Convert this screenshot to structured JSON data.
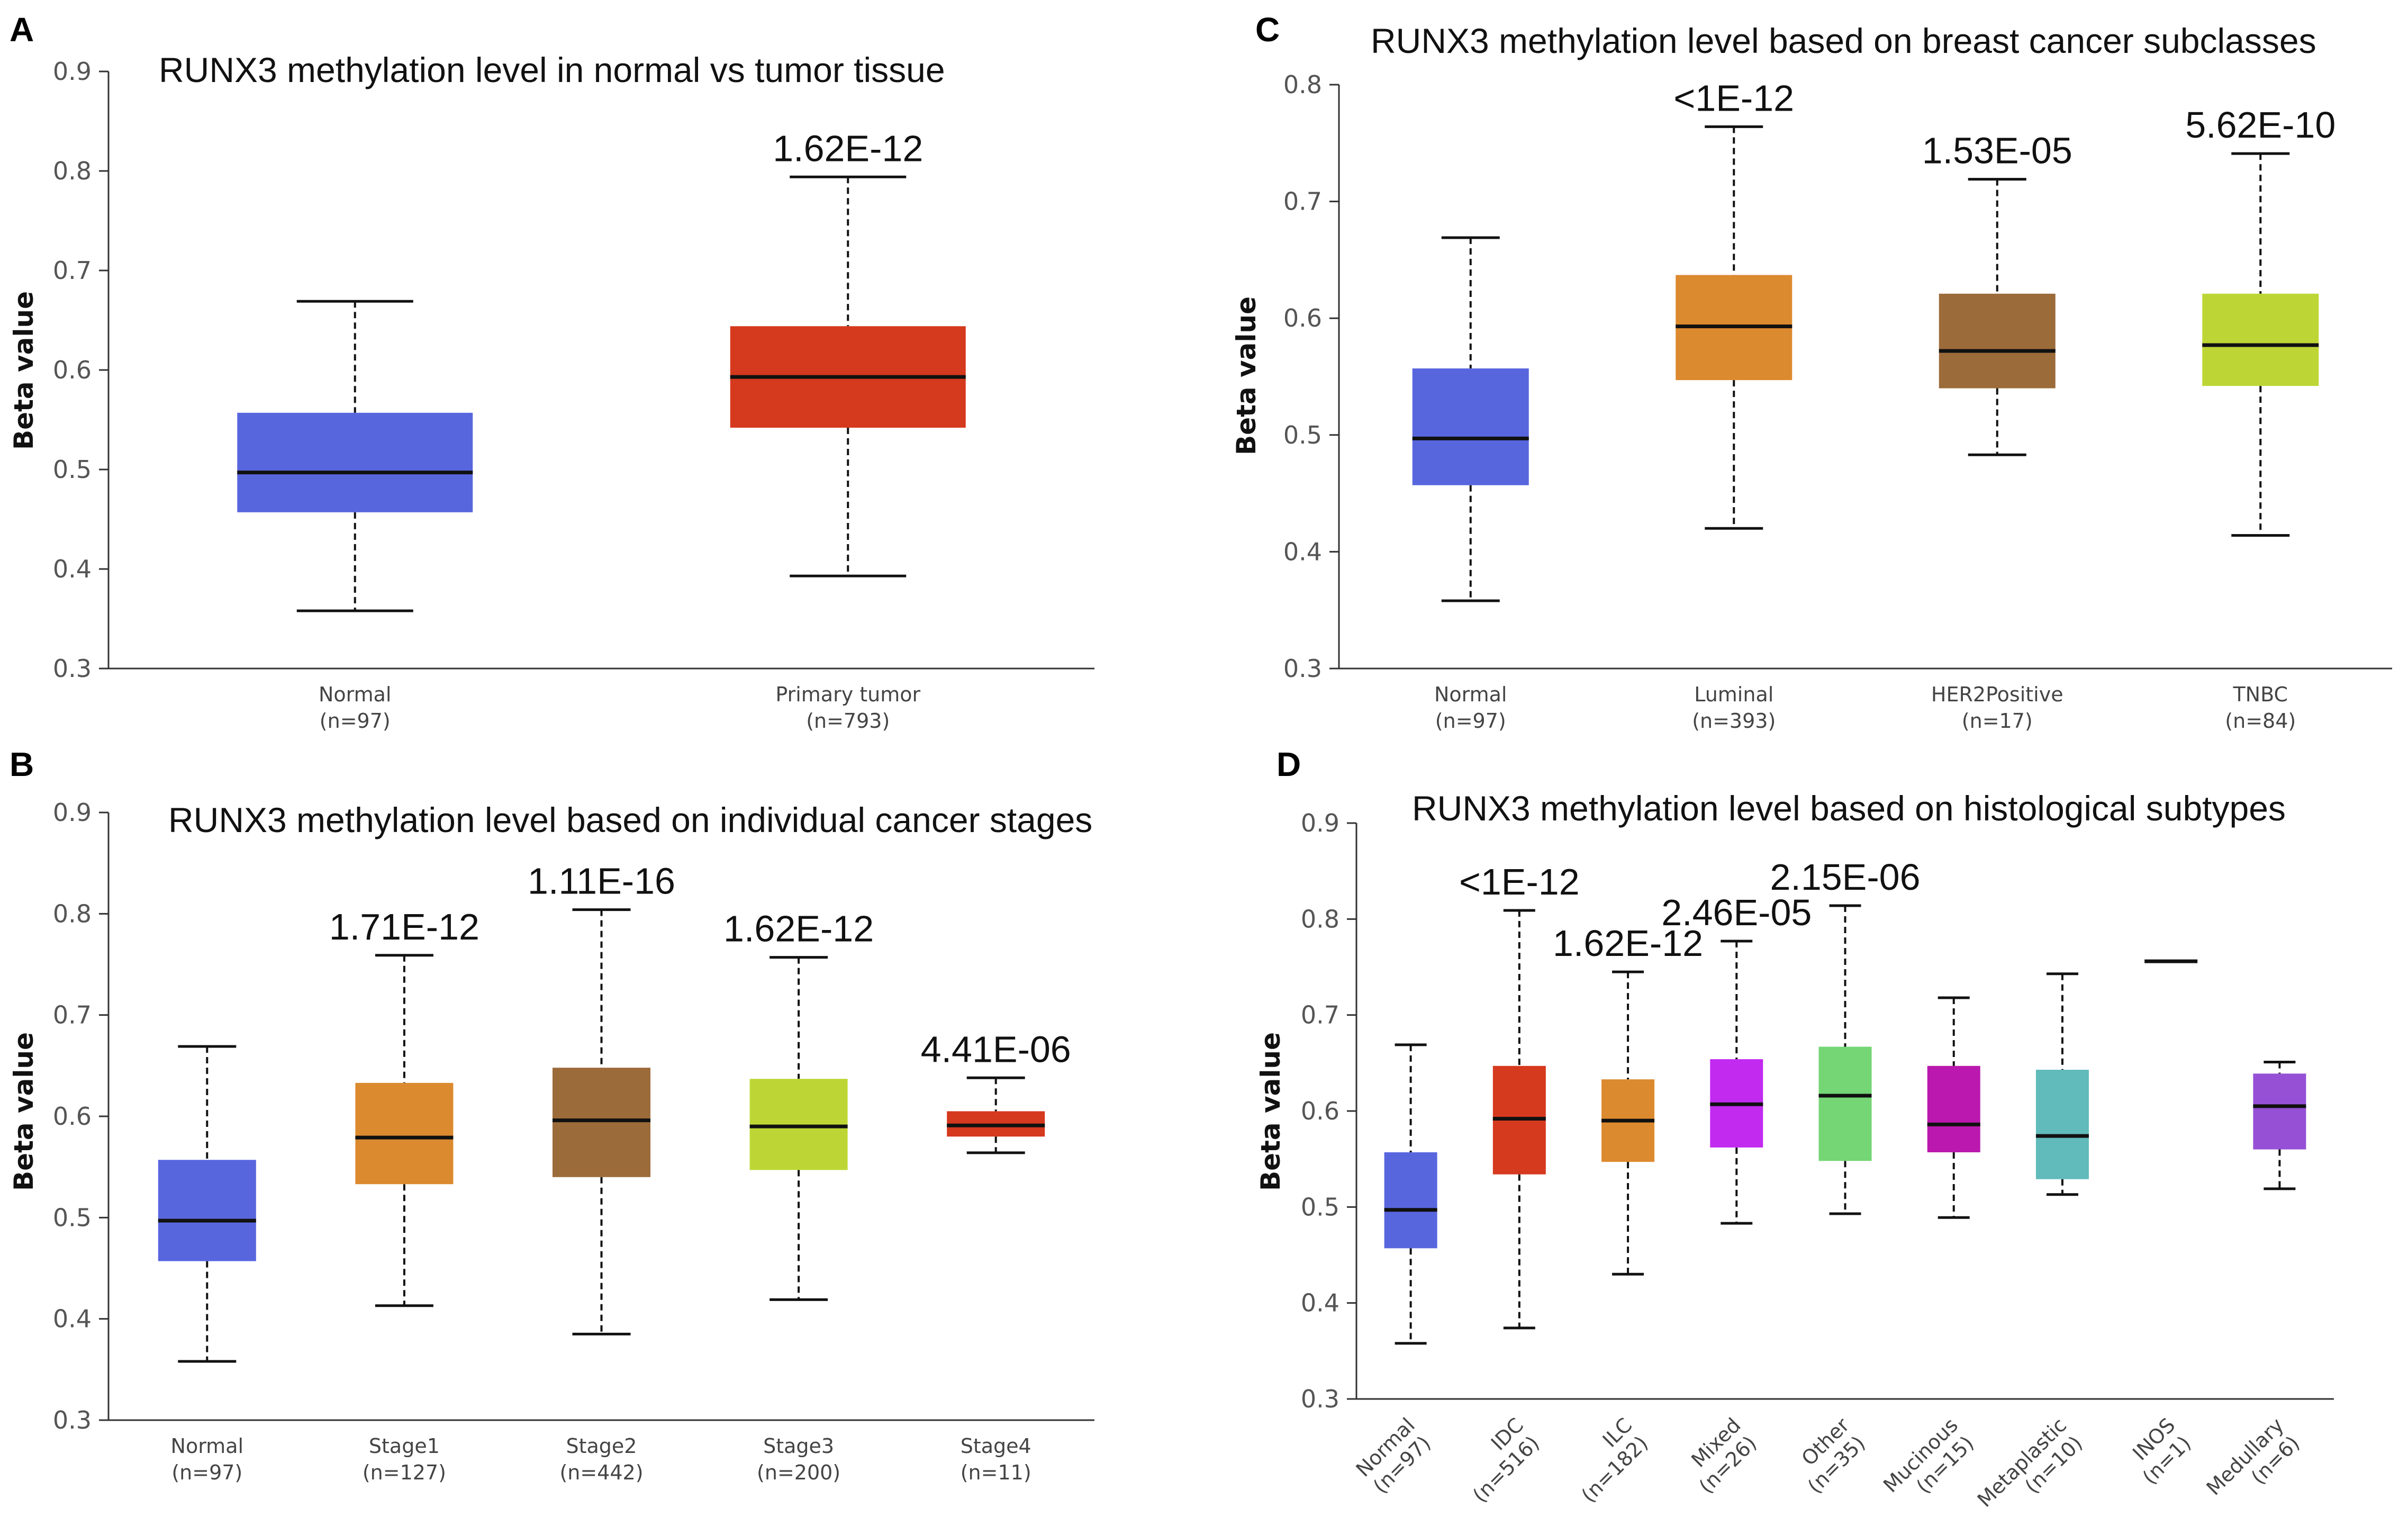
{
  "chart_data": [
    {
      "panel": "A",
      "type": "boxplot",
      "title": "RUNX3 methylation level in normal vs tumor tissue",
      "ylabel": "Beta value",
      "ylim": [
        0.3,
        0.9
      ],
      "yticks": [
        "0.3",
        "0.4",
        "0.5",
        "0.6",
        "0.7",
        "0.8",
        "0.9"
      ],
      "ytick_values": [
        0.3,
        0.4,
        0.5,
        0.6,
        0.7,
        0.8,
        0.9
      ],
      "xlabel_rotation": 0,
      "groups": [
        {
          "name": "Normal",
          "n": "(n=97)",
          "min": 0.358,
          "q1": 0.457,
          "median": 0.497,
          "q3": 0.557,
          "max": 0.669,
          "color": "#5866DE",
          "pvalue": ""
        },
        {
          "name": "Primary tumor",
          "n": "(n=793)",
          "min": 0.393,
          "q1": 0.542,
          "median": 0.593,
          "q3": 0.644,
          "max": 0.794,
          "color": "#D5391E",
          "pvalue": "1.62E-12"
        }
      ]
    },
    {
      "panel": "B",
      "type": "boxplot",
      "title": "RUNX3 methylation level based on individual cancer stages",
      "ylabel": "Beta value",
      "ylim": [
        0.3,
        0.9
      ],
      "yticks": [
        "0.3",
        "0.4",
        "0.5",
        "0.6",
        "0.7",
        "0.8",
        "0.9"
      ],
      "ytick_values": [
        0.3,
        0.4,
        0.5,
        0.6,
        0.7,
        0.8,
        0.9
      ],
      "xlabel_rotation": 0,
      "groups": [
        {
          "name": "Normal",
          "n": "(n=97)",
          "min": 0.358,
          "q1": 0.457,
          "median": 0.497,
          "q3": 0.557,
          "max": 0.669,
          "color": "#5866DE",
          "pvalue": ""
        },
        {
          "name": "Stage1",
          "n": "(n=127)",
          "min": 0.413,
          "q1": 0.533,
          "median": 0.579,
          "q3": 0.633,
          "max": 0.759,
          "color": "#DC8A2F",
          "pvalue": "1.71E-12"
        },
        {
          "name": "Stage2",
          "n": "(n=442)",
          "min": 0.385,
          "q1": 0.54,
          "median": 0.596,
          "q3": 0.648,
          "max": 0.804,
          "color": "#9C6B3A",
          "pvalue": "1.11E-16"
        },
        {
          "name": "Stage3",
          "n": "(n=200)",
          "min": 0.419,
          "q1": 0.547,
          "median": 0.59,
          "q3": 0.637,
          "max": 0.757,
          "color": "#BED635",
          "pvalue": "1.62E-12"
        },
        {
          "name": "Stage4",
          "n": "(n=11)",
          "min": 0.564,
          "q1": 0.58,
          "median": 0.591,
          "q3": 0.605,
          "max": 0.638,
          "color": "#D5391E",
          "pvalue": "4.41E-06"
        }
      ]
    },
    {
      "panel": "C",
      "type": "boxplot",
      "title": "RUNX3 methylation level based on breast cancer subclasses",
      "ylabel": "Beta value",
      "ylim": [
        0.3,
        0.8
      ],
      "yticks": [
        "0.3",
        "0.4",
        "0.5",
        "0.6",
        "0.7",
        "0.8"
      ],
      "ytick_values": [
        0.3,
        0.4,
        0.5,
        0.6,
        0.7,
        0.8
      ],
      "xlabel_rotation": 0,
      "groups": [
        {
          "name": "Normal",
          "n": "(n=97)",
          "min": 0.358,
          "q1": 0.457,
          "median": 0.497,
          "q3": 0.557,
          "max": 0.669,
          "color": "#5866DE",
          "pvalue": ""
        },
        {
          "name": "Luminal",
          "n": "(n=393)",
          "min": 0.42,
          "q1": 0.547,
          "median": 0.593,
          "q3": 0.637,
          "max": 0.764,
          "color": "#DC8A2F",
          "pvalue": "<1E-12"
        },
        {
          "name": "HER2Positive",
          "n": "(n=17)",
          "min": 0.483,
          "q1": 0.54,
          "median": 0.572,
          "q3": 0.621,
          "max": 0.719,
          "color": "#9C6B3A",
          "pvalue": "1.53E-05"
        },
        {
          "name": "TNBC",
          "n": "(n=84)",
          "min": 0.414,
          "q1": 0.542,
          "median": 0.577,
          "q3": 0.621,
          "max": 0.741,
          "color": "#BED635",
          "pvalue": "5.62E-10"
        }
      ]
    },
    {
      "panel": "D",
      "type": "boxplot",
      "title": "RUNX3 methylation level based on histological subtypes",
      "ylabel": "Beta value",
      "ylim": [
        0.3,
        0.9
      ],
      "yticks": [
        "0.3",
        "0.4",
        "0.5",
        "0.6",
        "0.7",
        "0.8",
        "0.9"
      ],
      "ytick_values": [
        0.3,
        0.4,
        0.5,
        0.6,
        0.7,
        0.8,
        0.9
      ],
      "xlabel_rotation": -45,
      "groups": [
        {
          "name": "Normal",
          "n": "(n=97)",
          "min": 0.358,
          "q1": 0.457,
          "median": 0.497,
          "q3": 0.557,
          "max": 0.669,
          "color": "#5866DE",
          "pvalue": ""
        },
        {
          "name": "IDC",
          "n": "(n=516)",
          "min": 0.374,
          "q1": 0.534,
          "median": 0.592,
          "q3": 0.647,
          "max": 0.809,
          "color": "#D5391E",
          "pvalue": "<1E-12"
        },
        {
          "name": "ILC",
          "n": "(n=182)",
          "min": 0.43,
          "q1": 0.547,
          "median": 0.59,
          "q3": 0.633,
          "max": 0.745,
          "color": "#DC8A2F",
          "pvalue": "1.62E-12"
        },
        {
          "name": "Mixed",
          "n": "(n=26)",
          "min": 0.483,
          "q1": 0.562,
          "median": 0.607,
          "q3": 0.654,
          "max": 0.777,
          "color": "#C22AF0",
          "pvalue": "2.46E-05"
        },
        {
          "name": "Other",
          "n": "(n=35)",
          "min": 0.493,
          "q1": 0.548,
          "median": 0.616,
          "q3": 0.667,
          "max": 0.814,
          "color": "#74D674",
          "pvalue": "2.15E-06"
        },
        {
          "name": "Mucinous",
          "n": "(n=15)",
          "min": 0.489,
          "q1": 0.557,
          "median": 0.586,
          "q3": 0.647,
          "max": 0.718,
          "color": "#BA18AE",
          "pvalue": ""
        },
        {
          "name": "Metaplastic",
          "n": "(n=10)",
          "min": 0.513,
          "q1": 0.529,
          "median": 0.574,
          "q3": 0.643,
          "max": 0.743,
          "color": "#61BBBB",
          "pvalue": ""
        },
        {
          "name": "INOS",
          "n": "(n=1)",
          "min": 0.756,
          "q1": 0.756,
          "median": 0.756,
          "q3": 0.756,
          "max": 0.756,
          "color": "#111111",
          "pvalue": ""
        },
        {
          "name": "Medullary",
          "n": "(n=6)",
          "min": 0.519,
          "q1": 0.56,
          "median": 0.605,
          "q3": 0.639,
          "max": 0.651,
          "color": "#9650D6",
          "pvalue": ""
        }
      ]
    }
  ]
}
